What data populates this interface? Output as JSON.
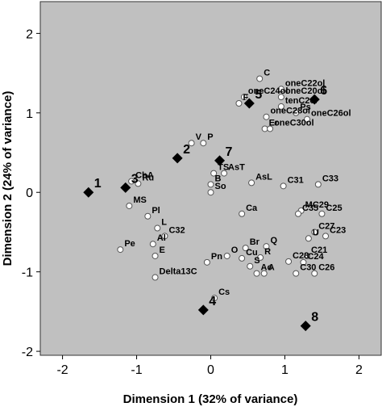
{
  "chart_data": {
    "type": "scatter",
    "title": "",
    "xlabel": "Dimension 1 (32% of variance)",
    "ylabel": "Dimension 2 (24% of variance)",
    "xlim": [
      -2.3,
      2.3
    ],
    "ylim": [
      -2.05,
      2.4
    ],
    "xticks": [
      -2,
      -1,
      0,
      1,
      2
    ],
    "yticks": [
      -2,
      -1,
      0,
      1,
      2
    ],
    "grid": false,
    "colors": {
      "plot_bg": "#c0c0c0",
      "marker_fill": "#ffffff",
      "marker_stroke": "#555555",
      "diamond_fill": "#000000"
    },
    "series": [
      {
        "marker": "circle",
        "points": [
          {
            "label": "C",
            "x": 0.66,
            "y": 1.43
          },
          {
            "label": "oneC22ol",
            "x": 0.95,
            "y": 1.3
          },
          {
            "label": "oneC24ol",
            "x": 0.45,
            "y": 1.2
          },
          {
            "label": "oneC20ol",
            "x": 0.95,
            "y": 1.2
          },
          {
            "label": "F",
            "x": 0.38,
            "y": 1.12
          },
          {
            "label": "tenC20l",
            "x": 0.95,
            "y": 1.08
          },
          {
            "label": "Ps",
            "x": 1.15,
            "y": 1.0
          },
          {
            "label": "oneC28ol",
            "x": 0.75,
            "y": 0.95
          },
          {
            "label": "oneC26ol",
            "x": 1.3,
            "y": 0.92
          },
          {
            "label": "Er",
            "x": 0.73,
            "y": 0.8
          },
          {
            "label": "oneC30ol",
            "x": 0.8,
            "y": 0.8
          },
          {
            "label": "V",
            "x": -0.26,
            "y": 0.62
          },
          {
            "label": "P",
            "x": -0.1,
            "y": 0.62
          },
          {
            "label": "ChA",
            "x": -1.07,
            "y": 0.14
          },
          {
            "label": "Ru",
            "x": -0.98,
            "y": 0.11
          },
          {
            "label": "TS",
            "x": 0.04,
            "y": 0.24
          },
          {
            "label": "AsT",
            "x": 0.18,
            "y": 0.24
          },
          {
            "label": "AsL",
            "x": 0.55,
            "y": 0.12
          },
          {
            "label": "C31",
            "x": 0.98,
            "y": 0.08
          },
          {
            "label": "C33",
            "x": 1.45,
            "y": 0.1
          },
          {
            "label": "B",
            "x": 0.0,
            "y": 0.1
          },
          {
            "label": "So",
            "x": 0.0,
            "y": 0.0
          },
          {
            "label": "MS",
            "x": -1.1,
            "y": -0.17
          },
          {
            "label": "Pl",
            "x": -0.85,
            "y": -0.3
          },
          {
            "label": "Ca",
            "x": 0.42,
            "y": -0.27
          },
          {
            "label": "MC29",
            "x": 1.22,
            "y": -0.23
          },
          {
            "label": "C35",
            "x": 1.18,
            "y": -0.27
          },
          {
            "label": "C25",
            "x": 1.5,
            "y": -0.27
          },
          {
            "label": "L",
            "x": -0.72,
            "y": -0.45
          },
          {
            "label": "C32",
            "x": -0.62,
            "y": -0.55
          },
          {
            "label": "Al",
            "x": -0.78,
            "y": -0.65
          },
          {
            "label": "Pe",
            "x": -1.22,
            "y": -0.72
          },
          {
            "label": "E",
            "x": -0.75,
            "y": -0.8
          },
          {
            "label": "Delta13C",
            "x": -0.75,
            "y": -1.07
          },
          {
            "label": "C27",
            "x": 1.4,
            "y": -0.5
          },
          {
            "label": "C23",
            "x": 1.55,
            "y": -0.55
          },
          {
            "label": "U",
            "x": 1.32,
            "y": -0.58
          },
          {
            "label": "Br",
            "x": 0.47,
            "y": -0.7
          },
          {
            "label": "Q",
            "x": 0.75,
            "y": -0.68
          },
          {
            "label": "O",
            "x": 0.22,
            "y": -0.8
          },
          {
            "label": "Pn",
            "x": -0.05,
            "y": -0.88
          },
          {
            "label": "Cu",
            "x": 0.42,
            "y": -0.83
          },
          {
            "label": "R",
            "x": 0.67,
            "y": -0.82
          },
          {
            "label": "C21",
            "x": 1.3,
            "y": -0.8
          },
          {
            "label": "C28",
            "x": 1.05,
            "y": -0.87
          },
          {
            "label": "C24",
            "x": 1.25,
            "y": -0.88
          },
          {
            "label": "S",
            "x": 0.53,
            "y": -0.93
          },
          {
            "label": "Ac",
            "x": 0.62,
            "y": -1.02
          },
          {
            "label": "A",
            "x": 0.72,
            "y": -1.02
          },
          {
            "label": "C30",
            "x": 1.15,
            "y": -1.02
          },
          {
            "label": "C26",
            "x": 1.4,
            "y": -1.02
          },
          {
            "label": "Cs",
            "x": 0.05,
            "y": -1.33
          }
        ]
      },
      {
        "marker": "diamond",
        "points": [
          {
            "label": "1",
            "x": -1.65,
            "y": 0.0
          },
          {
            "label": "2",
            "x": -0.45,
            "y": 0.43
          },
          {
            "label": "3",
            "x": -1.15,
            "y": 0.06
          },
          {
            "label": "4",
            "x": -0.1,
            "y": -1.48
          },
          {
            "label": "5",
            "x": 0.52,
            "y": 1.12
          },
          {
            "label": "6",
            "x": 1.4,
            "y": 1.17
          },
          {
            "label": "7",
            "x": 0.12,
            "y": 0.4
          },
          {
            "label": "8",
            "x": 1.28,
            "y": -1.68
          }
        ]
      }
    ]
  }
}
